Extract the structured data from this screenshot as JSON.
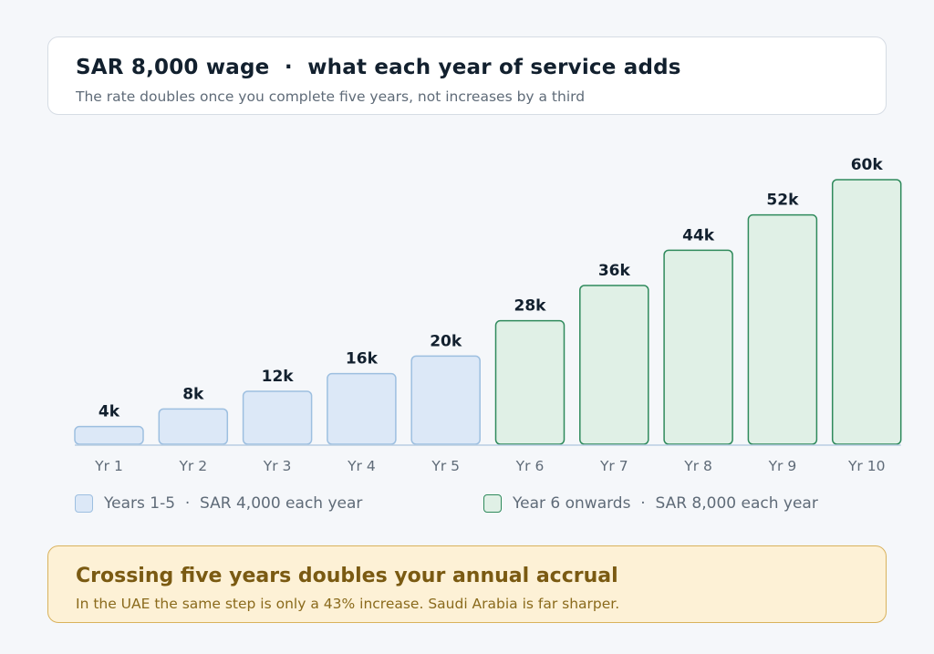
{
  "header": {
    "title": "SAR 8,000 wage  ·  what each year of service adds",
    "subtitle": "The rate doubles once you complete five years, not increases by a third"
  },
  "chart_data": {
    "type": "bar",
    "categories": [
      "Yr 1",
      "Yr 2",
      "Yr 3",
      "Yr 4",
      "Yr 5",
      "Yr 6",
      "Yr 7",
      "Yr 8",
      "Yr 9",
      "Yr 10"
    ],
    "values": [
      4000,
      8000,
      12000,
      16000,
      20000,
      28000,
      36000,
      44000,
      52000,
      60000
    ],
    "data_labels": [
      "4k",
      "8k",
      "12k",
      "16k",
      "20k",
      "28k",
      "36k",
      "44k",
      "52k",
      "60k"
    ],
    "groups": [
      0,
      0,
      0,
      0,
      0,
      1,
      1,
      1,
      1,
      1
    ],
    "ylim": [
      0,
      60000
    ],
    "grid": false,
    "legend_position": "bottom",
    "colors": {
      "group0_fill": "#dce8f7",
      "group0_stroke": "#9dbfe0",
      "group1_fill": "#e0f0e6",
      "group1_stroke": "#2f8a5c",
      "label": "#12202e",
      "tick": "#5f6b78",
      "axis": "#b9cde2"
    }
  },
  "legend": {
    "item0": "Years 1-5  ·  SAR 4,000 each year",
    "item1": "Year 6 onwards  ·  SAR 8,000 each year"
  },
  "callout": {
    "title": "Crossing five years doubles your annual accrual",
    "text": "In the UAE the same step is only a 43% increase. Saudi Arabia is far sharper."
  }
}
